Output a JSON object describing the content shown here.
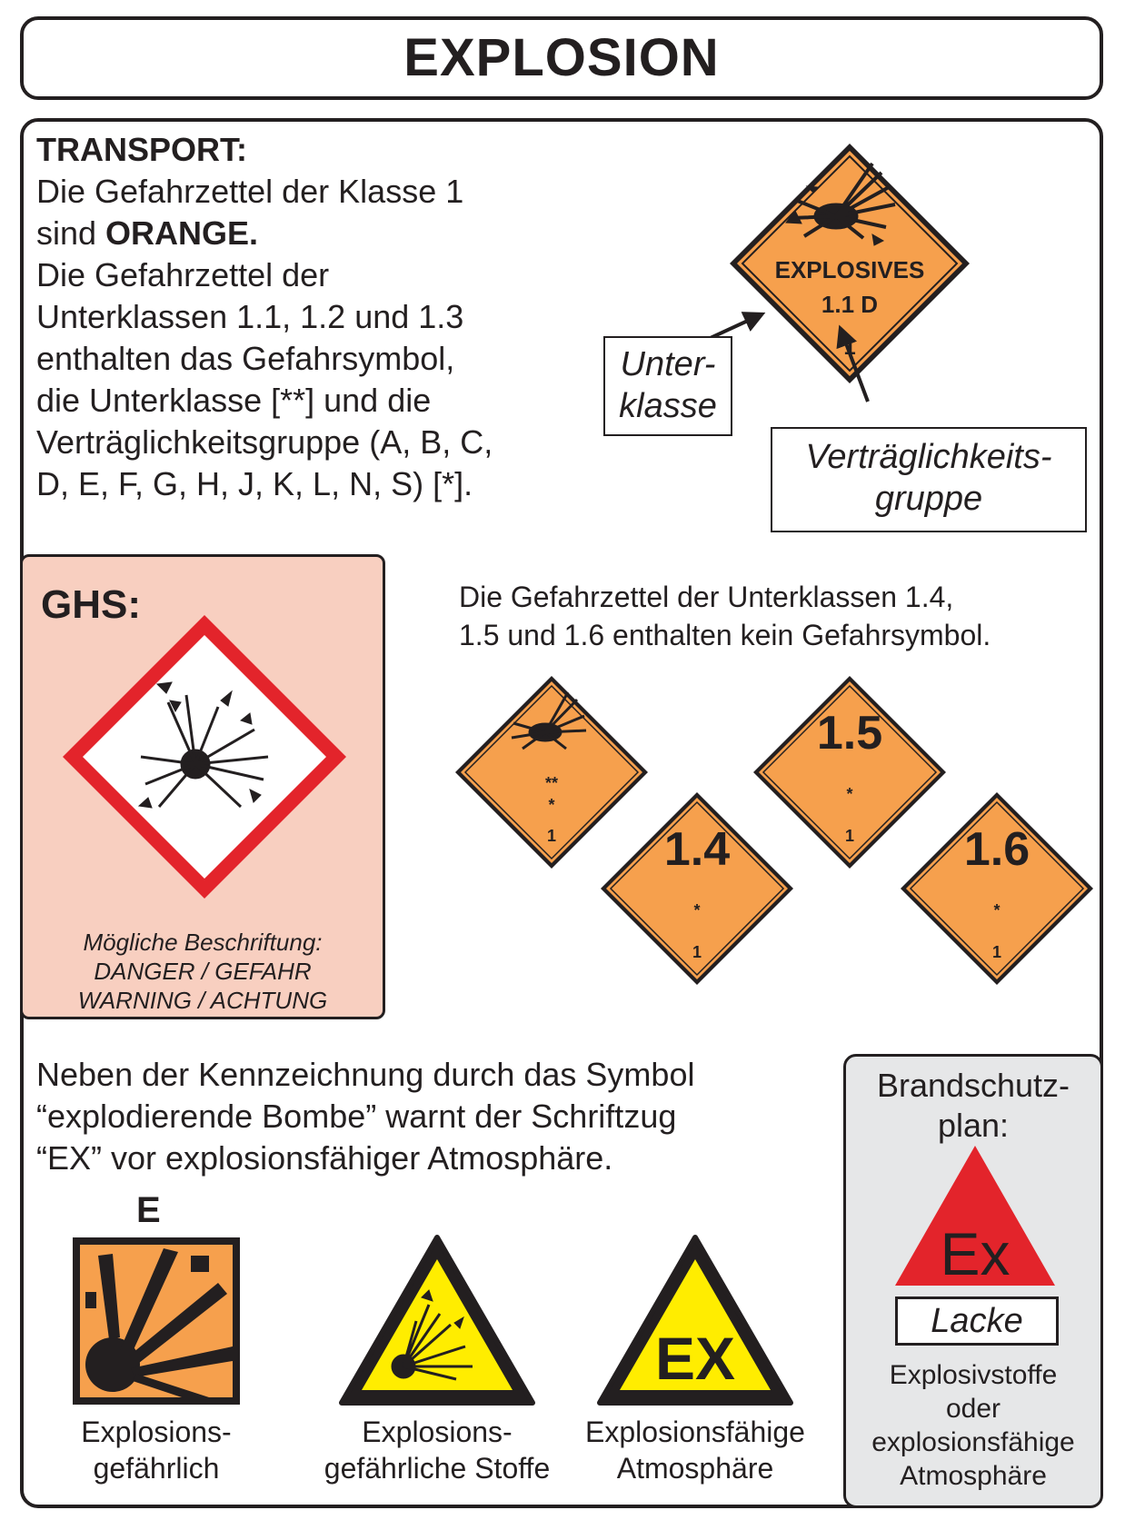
{
  "page": {
    "title": "EXPLOSION"
  },
  "transport": {
    "heading": "TRANSPORT:",
    "line1": "Die Gefahrzettel der Klasse 1",
    "line2_pre": "sind ",
    "line2_bold": "ORANGE.",
    "line3": "Die Gefahrzettel der",
    "line4": "Unterklassen 1.1, 1.2 und 1.3",
    "line5": "enthalten das Gefahrsymbol,",
    "line6": "die Unterklasse [**] und die",
    "line7": "Verträglichkeitsgruppe (A, B, C,",
    "line8": "D, E, F, G, H, J, K, L, N, S) [*]."
  },
  "main_label": {
    "word": "EXPLOSIVES",
    "code": "1.1 D",
    "class_number": "1",
    "color": "#f6a04d"
  },
  "callouts": {
    "unterklasse_l1": "Unter-",
    "unterklasse_l2": "klasse",
    "vg_l1": "Verträglichkeits-",
    "vg_l2": "gruppe"
  },
  "ghs": {
    "label": "GHS:",
    "caption_l1": "Mögliche Beschriftung:",
    "caption_l2": "DANGER / GEFAHR",
    "caption_l3": "WARNING / ACHTUNG",
    "border_color": "#e3242b",
    "panel_color": "#f8cfc0"
  },
  "subclasses": {
    "text_l1": "Die Gefahrzettel der Unterklassen 1.4,",
    "text_l2": "1.5 und 1.6 enthalten kein Gefahrsymbol.",
    "generic": {
      "sub": "**",
      "group": "*",
      "class_number": "1"
    },
    "items": [
      {
        "code": "1.4",
        "group": "*",
        "class_number": "1"
      },
      {
        "code": "1.5",
        "group": "*",
        "class_number": "1"
      },
      {
        "code": "1.6",
        "group": "*",
        "class_number": "1"
      }
    ]
  },
  "ex_info": {
    "line1": "Neben der Kennzeichnung durch das Symbol",
    "line2": "“explodierende Bombe” warnt der Schriftzug",
    "line3": "“EX” vor explosionsfähiger Atmosphäre."
  },
  "signs": {
    "e_letter": "E",
    "sign1_l1": "Explosions-",
    "sign1_l2": "gefährlich",
    "sign2_l1": "Explosions-",
    "sign2_l2": "gefährliche Stoffe",
    "sign3_text": "EX",
    "sign3_l1": "Explosionsfähige",
    "sign3_l2": "Atmosphäre",
    "yellow": "#ffed00",
    "orange": "#f6a04d"
  },
  "brandschutz": {
    "title_l1": "Brandschutz-",
    "title_l2": "plan:",
    "triangle_text": "Ex",
    "box_text": "Lacke",
    "caption_l1": "Explosivstoffe",
    "caption_l2": "oder",
    "caption_l3": "explosionsfähige",
    "caption_l4": "Atmosphäre",
    "triangle_color": "#e3242b",
    "panel_color": "#e6e7e8"
  }
}
